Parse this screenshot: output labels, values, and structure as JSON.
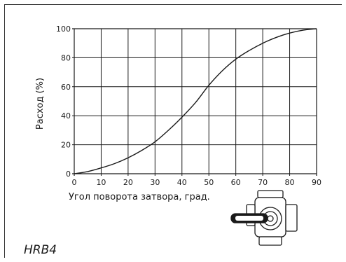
{
  "chart_data": {
    "type": "line",
    "title": "",
    "xlabel": "Угол поворота затвора, град.",
    "ylabel": "Расход (%)",
    "xlim": [
      0,
      90
    ],
    "ylim": [
      0,
      100
    ],
    "x_ticks": [
      0,
      10,
      20,
      30,
      40,
      50,
      60,
      70,
      80,
      90
    ],
    "y_ticks": [
      0,
      20,
      40,
      60,
      80,
      100
    ],
    "grid": true,
    "series": [
      {
        "x": [
          0,
          5,
          10,
          15,
          20,
          25,
          30,
          35,
          40,
          45,
          50,
          55,
          60,
          65,
          70,
          75,
          80,
          85,
          90
        ],
        "values": [
          0,
          1.5,
          4,
          7,
          11,
          16,
          22,
          30,
          39,
          49,
          61,
          71,
          79,
          85,
          90,
          94,
          97,
          99,
          100
        ]
      }
    ]
  },
  "model_label": "HRB4",
  "colors": {
    "line": "#1a1a1a",
    "grid": "#1a1a1a",
    "frame": "#333333"
  },
  "illustration": "valve-with-handle-icon"
}
